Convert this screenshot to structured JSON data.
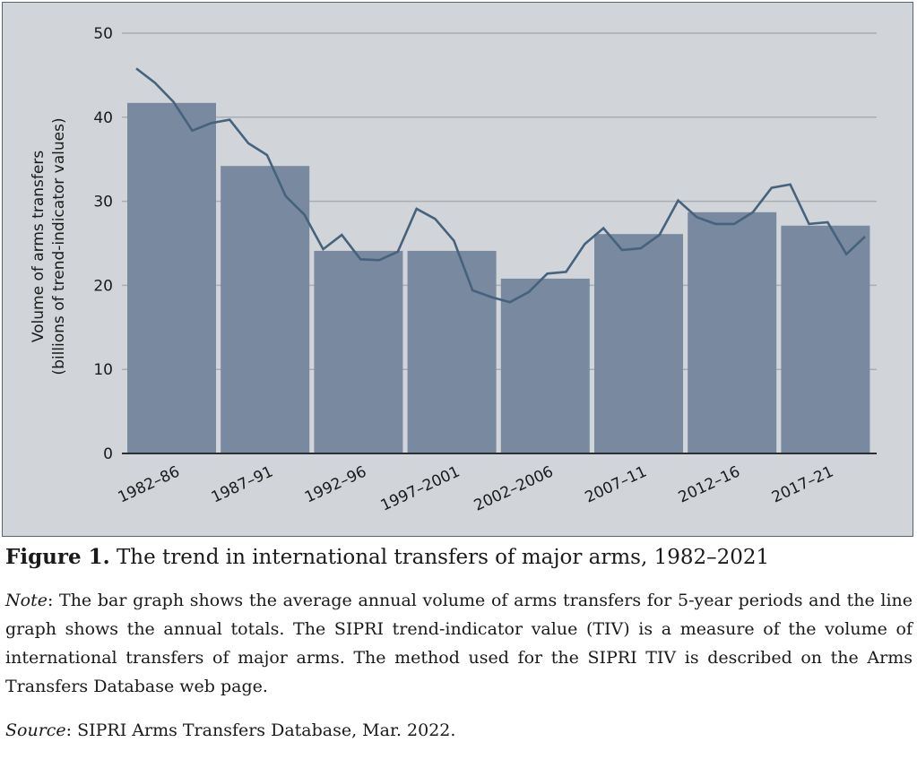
{
  "chart_data": {
    "type": "bar+line",
    "title": "Figure 1. The trend in international transfers of major arms, 1982–2021",
    "ylabel_line1": "Volume of arms transfers",
    "ylabel_line2": "(billions of trend-indicator values)",
    "xlabel": "",
    "ylim": [
      0,
      50
    ],
    "yticks": [
      "0",
      "10",
      "20",
      "30",
      "40",
      "50"
    ],
    "ytick_values": [
      0,
      10,
      20,
      30,
      40,
      50
    ],
    "grid": true,
    "categories": [
      "1982–86",
      "1987–91",
      "1992–96",
      "1997–2001",
      "2002–2006",
      "2007–11",
      "2012–16",
      "2017–21"
    ],
    "series": [
      {
        "name": "5-year average annual volume",
        "type": "bar",
        "values": [
          41.7,
          34.2,
          24.1,
          24.1,
          20.8,
          26.1,
          28.7,
          27.1
        ]
      },
      {
        "name": "Annual totals",
        "type": "line",
        "x": [
          1982,
          1983,
          1984,
          1985,
          1986,
          1987,
          1988,
          1989,
          1990,
          1991,
          1992,
          1993,
          1994,
          1995,
          1996,
          1997,
          1998,
          1999,
          2000,
          2001,
          2002,
          2003,
          2004,
          2005,
          2006,
          2007,
          2008,
          2009,
          2010,
          2011,
          2012,
          2013,
          2014,
          2015,
          2016,
          2017,
          2018,
          2019,
          2020,
          2021
        ],
        "values": [
          45.8,
          44.1,
          41.8,
          38.4,
          39.3,
          39.7,
          36.9,
          35.5,
          30.6,
          28.4,
          24.3,
          26.0,
          23.1,
          23.0,
          24.0,
          29.1,
          27.9,
          25.3,
          19.4,
          18.6,
          18.0,
          19.2,
          21.4,
          21.6,
          24.9,
          26.8,
          24.2,
          24.4,
          26.0,
          30.1,
          28.1,
          27.3,
          27.3,
          28.7,
          31.6,
          32.0,
          27.3,
          27.5,
          23.7,
          25.8
        ]
      }
    ],
    "colors": {
      "bar": "#7889a0",
      "line": "#46627c",
      "background": "#d1d5d9",
      "grid": "#a9adb2",
      "border": "#55657a"
    }
  },
  "caption": {
    "figure_label": "Figure 1.",
    "figure_title": "The trend in international transfers of major arms, 1982–2021",
    "note_label": "Note",
    "note_text": ": The bar graph shows the average annual volume of arms transfers for 5-year periods and the line graph shows the annual totals. The SIPRI trend-indicator value (TIV) is a measure of the volume of international transfers of major arms. The method used for the SIPRI TIV is described on the Arms Transfers Database web page.",
    "source_label": "Source",
    "source_text": ": SIPRI Arms Transfers Database, Mar. 2022."
  }
}
